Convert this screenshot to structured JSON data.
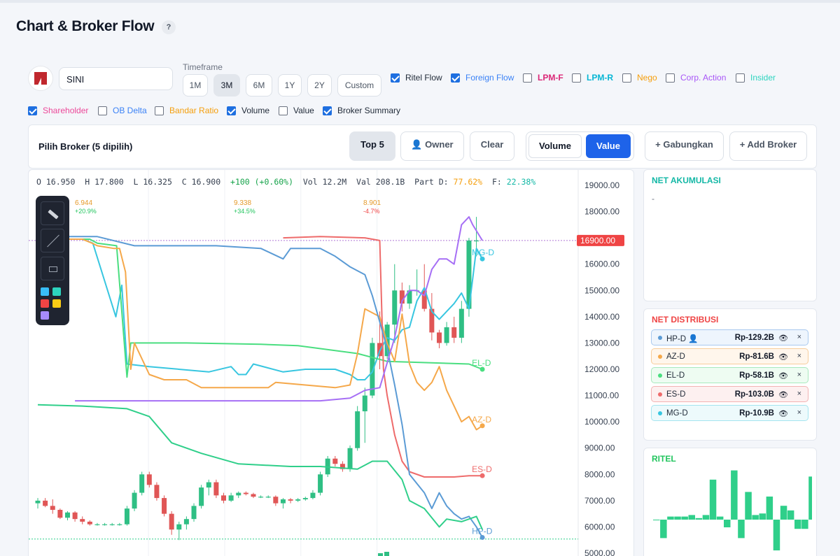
{
  "page": {
    "title": "Chart & Broker Flow",
    "help": "?"
  },
  "ticker": {
    "value": "SINI"
  },
  "timeframe": {
    "label": "Timeframe",
    "options": [
      "1M",
      "3M",
      "6M",
      "1Y",
      "2Y",
      "Custom"
    ],
    "selected": "3M"
  },
  "toggles": [
    {
      "label": "Ritel Flow",
      "checked": true,
      "color": "#1f2937"
    },
    {
      "label": "Foreign Flow",
      "checked": true,
      "color": "#3b82f6"
    },
    {
      "label": "LPM-F",
      "checked": false,
      "color": "#db2777"
    },
    {
      "label": "LPM-R",
      "checked": false,
      "color": "#06b6d4"
    },
    {
      "label": "Nego",
      "checked": false,
      "color": "#f59e0b"
    },
    {
      "label": "Corp. Action",
      "checked": false,
      "color": "#a855f7"
    },
    {
      "label": "Insider",
      "checked": false,
      "color": "#2dd4bf"
    },
    {
      "label": "Shareholder",
      "checked": true,
      "color": "#ec4899"
    },
    {
      "label": "OB Delta",
      "checked": false,
      "color": "#3b82f6"
    },
    {
      "label": "Bandar Ratio",
      "checked": false,
      "color": "#f59e0b"
    },
    {
      "label": "Volume",
      "checked": true,
      "color": "#1f2937"
    },
    {
      "label": "Value",
      "checked": false,
      "color": "#1f2937"
    },
    {
      "label": "Broker Summary",
      "checked": true,
      "color": "#1f2937"
    }
  ],
  "broker": {
    "title": "Pilih Broker (5 dipilih)",
    "top5": "Top 5",
    "owner": "👤 Owner",
    "clear": "Clear",
    "volume": "Volume",
    "value": "Value",
    "gabungkan": "+ Gabungkan",
    "add": "+ Add Broker"
  },
  "ohlc": {
    "o": "16.950",
    "h": "17.800",
    "l": "16.325",
    "c": "16.900",
    "chg": "+100 (+0.60%)",
    "vol": "12.2M",
    "val": "208.1B",
    "partd": "77.62%",
    "f": "22.38%"
  },
  "annotations": [
    {
      "value": "6.944",
      "pct": "+20.9%"
    },
    {
      "value": "9.338",
      "pct": "+34.5%"
    },
    {
      "value": "8.901",
      "pct": "-4.7%"
    }
  ],
  "chart_data": {
    "type": "line",
    "y_ticks": [
      "19000.00",
      "18000.00",
      "16000.00",
      "15000.00",
      "14000.00",
      "13000.00",
      "12000.00",
      "11000.00",
      "10000.00",
      "9000.00",
      "8000.00",
      "7000.00",
      "6000.00",
      "5000.00"
    ],
    "last_price_label": "16900.00",
    "last_price": 16900,
    "ylim": [
      5000,
      19400
    ],
    "series_labels": [
      "MG-D",
      "EL-D",
      "AZ-D",
      "ES-D",
      "HP-D"
    ],
    "candles": [
      [
        6.9,
        7.1,
        6.7,
        7.0
      ],
      [
        7.0,
        7.1,
        6.75,
        6.8
      ],
      [
        6.8,
        7.05,
        6.5,
        6.65
      ],
      [
        6.65,
        6.7,
        6.3,
        6.35
      ],
      [
        6.35,
        6.6,
        6.25,
        6.55
      ],
      [
        6.55,
        6.6,
        6.2,
        6.3
      ],
      [
        6.3,
        6.4,
        6.1,
        6.2
      ],
      [
        6.2,
        6.25,
        6.05,
        6.1
      ],
      [
        6.1,
        6.15,
        6.05,
        6.1
      ],
      [
        6.1,
        6.15,
        6.05,
        6.1
      ],
      [
        6.1,
        6.15,
        6.05,
        6.1
      ],
      [
        6.1,
        6.15,
        6.05,
        6.1
      ],
      [
        6.1,
        6.8,
        6.05,
        6.7
      ],
      [
        6.7,
        7.4,
        6.6,
        7.3
      ],
      [
        7.3,
        8.1,
        7.2,
        8.0
      ],
      [
        8.0,
        8.1,
        7.5,
        7.6
      ],
      [
        7.6,
        7.7,
        7.0,
        7.1
      ],
      [
        7.1,
        7.2,
        6.4,
        6.5
      ],
      [
        6.5,
        6.6,
        5.7,
        5.9
      ],
      [
        5.9,
        6.2,
        5.5,
        6.1
      ],
      [
        6.1,
        6.4,
        5.9,
        6.3
      ],
      [
        6.3,
        6.9,
        6.2,
        6.8
      ],
      [
        6.8,
        7.6,
        6.7,
        7.5
      ],
      [
        7.5,
        7.8,
        7.2,
        7.7
      ],
      [
        7.7,
        7.8,
        7.1,
        7.2
      ],
      [
        7.2,
        7.3,
        6.9,
        7.0
      ],
      [
        7.0,
        7.3,
        6.95,
        7.2
      ],
      [
        7.2,
        7.35,
        7.1,
        7.3
      ],
      [
        7.3,
        7.35,
        7.2,
        7.25
      ],
      [
        7.25,
        7.3,
        7.1,
        7.15
      ],
      [
        7.15,
        7.2,
        7.1,
        7.15
      ],
      [
        7.15,
        7.2,
        7.1,
        7.15
      ],
      [
        7.15,
        7.2,
        6.8,
        6.9
      ],
      [
        6.9,
        7.1,
        6.7,
        7.05
      ],
      [
        7.05,
        7.1,
        6.9,
        7.0
      ],
      [
        7.0,
        7.1,
        6.95,
        7.05
      ],
      [
        7.05,
        7.15,
        7.0,
        7.1
      ],
      [
        7.1,
        7.4,
        7.05,
        7.3
      ],
      [
        7.3,
        8.1,
        7.2,
        8.0
      ],
      [
        8.0,
        8.7,
        7.9,
        8.6
      ],
      [
        8.6,
        8.7,
        8.3,
        8.4
      ],
      [
        8.4,
        8.5,
        8.1,
        8.2
      ],
      [
        8.2,
        9.1,
        8.1,
        9.0
      ],
      [
        9.0,
        10.6,
        8.9,
        10.4
      ],
      [
        10.4,
        11.3,
        9.2,
        11.0
      ],
      [
        11.0,
        13.2,
        10.9,
        13.0
      ],
      [
        13.0,
        14.2,
        12.0,
        12.5
      ],
      [
        12.5,
        13.8,
        12.4,
        13.7
      ],
      [
        13.7,
        16.0,
        13.0,
        15.0
      ],
      [
        15.0,
        15.3,
        14.2,
        14.5
      ],
      [
        14.5,
        15.2,
        14.3,
        15.0
      ],
      [
        15.0,
        15.8,
        14.8,
        15.0
      ],
      [
        15.0,
        16.0,
        14.2,
        14.3
      ],
      [
        14.3,
        14.9,
        13.1,
        13.4
      ],
      [
        13.4,
        13.5,
        12.8,
        13.0
      ],
      [
        13.0,
        13.8,
        12.9,
        13.6
      ],
      [
        13.6,
        14.0,
        13.0,
        13.2
      ],
      [
        13.2,
        14.6,
        13.0,
        14.3
      ],
      [
        14.3,
        17.0,
        14.0,
        16.9
      ],
      [
        16.9,
        17.8,
        16.3,
        16.9
      ]
    ],
    "lines": [
      {
        "name": "MG-D",
        "color": "#38c6e0",
        "points": [
          [
            0,
            16.95
          ],
          [
            6,
            16.95
          ],
          [
            7.4,
            16.8
          ],
          [
            10.5,
            14.0
          ],
          [
            11.3,
            15.2
          ],
          [
            12,
            12.2
          ],
          [
            15,
            12.1
          ],
          [
            23,
            11.9
          ],
          [
            26,
            12.1
          ],
          [
            27,
            11.8
          ],
          [
            28,
            11.8
          ],
          [
            29,
            12.2
          ],
          [
            33,
            11.9
          ],
          [
            36,
            12.0
          ],
          [
            40,
            12.0
          ],
          [
            42,
            11.8
          ],
          [
            43,
            11.6
          ],
          [
            44,
            11.6
          ],
          [
            45,
            11.9
          ],
          [
            46,
            12.7
          ],
          [
            47,
            13.2
          ],
          [
            48,
            13.1
          ],
          [
            49,
            13.5
          ],
          [
            50,
            13.6
          ],
          [
            51,
            14.6
          ],
          [
            52,
            15.1
          ],
          [
            53,
            14.2
          ],
          [
            54,
            13.9
          ],
          [
            55,
            14.2
          ],
          [
            56,
            14.5
          ],
          [
            57,
            14.9
          ],
          [
            58,
            14.3
          ],
          [
            59,
            16.6
          ],
          [
            59.8,
            16.2
          ]
        ]
      },
      {
        "name": "EL-D",
        "color": "#4ade80",
        "points": [
          [
            0,
            16.95
          ],
          [
            7,
            16.95
          ],
          [
            8,
            16.8
          ],
          [
            10.6,
            16.7
          ],
          [
            12.0,
            11.7
          ],
          [
            12.5,
            13.0
          ],
          [
            14,
            13.0
          ],
          [
            20,
            13.0
          ],
          [
            30,
            12.95
          ],
          [
            35,
            12.9
          ],
          [
            43,
            12.6
          ],
          [
            47,
            12.3
          ],
          [
            58,
            12.2
          ],
          [
            59.8,
            12.0
          ]
        ]
      },
      {
        "name": "AZ-D",
        "color": "#f5a84a",
        "points": [
          [
            0,
            16.95
          ],
          [
            6,
            16.95
          ],
          [
            7.3,
            16.8
          ],
          [
            8,
            16.7
          ],
          [
            10.2,
            16.6
          ],
          [
            10.6,
            16.6
          ],
          [
            11,
            16.6
          ],
          [
            11.8,
            15.7
          ],
          [
            12.5,
            12.0
          ],
          [
            13,
            13.0
          ],
          [
            15,
            11.8
          ],
          [
            17,
            11.6
          ],
          [
            20,
            11.6
          ],
          [
            22,
            11.3
          ],
          [
            28,
            11.3
          ],
          [
            29,
            11.3
          ],
          [
            30,
            11.3
          ],
          [
            31,
            11.3
          ],
          [
            32,
            11.5
          ],
          [
            40,
            11.3
          ],
          [
            42,
            11.4
          ],
          [
            43,
            12.6
          ],
          [
            44,
            14.3
          ],
          [
            46,
            14.0
          ],
          [
            47,
            13.0
          ],
          [
            48,
            12.3
          ],
          [
            49,
            14.1
          ],
          [
            50,
            12.2
          ],
          [
            51,
            11.5
          ],
          [
            52,
            11.2
          ],
          [
            53,
            11.5
          ],
          [
            54,
            12.1
          ],
          [
            55,
            11.2
          ],
          [
            56,
            10.6
          ],
          [
            57,
            10.0
          ],
          [
            58,
            10.2
          ],
          [
            59,
            9.7
          ],
          [
            59.8,
            9.85
          ]
        ]
      },
      {
        "name": "ES-D",
        "color": "#ee6b6b",
        "points": [
          [
            33,
            17.0
          ],
          [
            38,
            17.05
          ],
          [
            44,
            17.0
          ],
          [
            46,
            16.9
          ],
          [
            46.5,
            12.0
          ],
          [
            47,
            11.0
          ],
          [
            48,
            9.5
          ],
          [
            49,
            8.5
          ],
          [
            50,
            8.1
          ],
          [
            52,
            7.9
          ],
          [
            56,
            7.9
          ],
          [
            58,
            7.95
          ],
          [
            59.8,
            7.95
          ]
        ]
      },
      {
        "name": "HP-D",
        "color": "#5b9bd5",
        "points": [
          [
            0,
            17.05
          ],
          [
            8,
            17.05
          ],
          [
            13,
            16.7
          ],
          [
            24,
            16.7
          ],
          [
            30,
            16.6
          ],
          [
            33,
            16.2
          ],
          [
            34,
            16.6
          ],
          [
            38,
            16.6
          ],
          [
            40,
            16.3
          ],
          [
            42,
            15.9
          ],
          [
            44,
            15.6
          ],
          [
            45,
            14.8
          ],
          [
            47,
            12.8
          ],
          [
            48,
            11.4
          ],
          [
            49,
            9.9
          ],
          [
            50,
            8.0
          ],
          [
            52,
            7.3
          ],
          [
            53,
            6.7
          ],
          [
            54,
            7.3
          ],
          [
            55,
            6.8
          ],
          [
            56,
            6.5
          ],
          [
            57,
            6.3
          ],
          [
            58,
            6.4
          ],
          [
            59,
            6.0
          ],
          [
            59.8,
            5.6
          ]
        ]
      },
      {
        "name": "",
        "color": "#2fcf8a",
        "points": [
          [
            0,
            10.65
          ],
          [
            6,
            10.6
          ],
          [
            12,
            10.5
          ],
          [
            15,
            10.2
          ],
          [
            18,
            9.2
          ],
          [
            22,
            8.8
          ],
          [
            27,
            8.4
          ],
          [
            34,
            8.3
          ],
          [
            38,
            8.3
          ],
          [
            43,
            8.2
          ],
          [
            45,
            8.5
          ],
          [
            47,
            8.5
          ],
          [
            49,
            7.8
          ],
          [
            50,
            7.0
          ],
          [
            52,
            6.7
          ],
          [
            54,
            6.0
          ],
          [
            55,
            6.3
          ],
          [
            57,
            6.2
          ],
          [
            59,
            6.4
          ],
          [
            59.8,
            5.9
          ]
        ]
      },
      {
        "name": "",
        "color": "#a66ff5",
        "points": [
          [
            5,
            10.8
          ],
          [
            15,
            10.8
          ],
          [
            30,
            10.8
          ],
          [
            38,
            10.8
          ],
          [
            42,
            10.9
          ],
          [
            44,
            11.2
          ],
          [
            46,
            11.3
          ],
          [
            48,
            13.2
          ],
          [
            49,
            14.6
          ],
          [
            50,
            15.0
          ],
          [
            51,
            15.0
          ],
          [
            52,
            14.8
          ],
          [
            53,
            15.8
          ],
          [
            54,
            16.2
          ],
          [
            55,
            16.2
          ],
          [
            56,
            16.0
          ],
          [
            57,
            17.5
          ],
          [
            58,
            17.8
          ],
          [
            58.5,
            17.5
          ],
          [
            59.8,
            16.9
          ]
        ]
      }
    ]
  },
  "net_akumulasi": {
    "title": "NET AKUMULASI",
    "value": "-"
  },
  "net_distribusi": {
    "title": "NET DISTRIBUSI",
    "items": [
      {
        "name": "HP-D 👤",
        "value": "Rp-129.2B",
        "color": "#5b9bd5",
        "bg": "#eef5fd",
        "border": "#a9c9ef"
      },
      {
        "name": "AZ-D",
        "value": "Rp-81.6B",
        "color": "#f5a84a",
        "bg": "#fff6ec",
        "border": "#f7cd9b"
      },
      {
        "name": "EL-D",
        "value": "Rp-58.1B",
        "color": "#4ade80",
        "bg": "#eefcf2",
        "border": "#a8e9bd"
      },
      {
        "name": "ES-D",
        "value": "Rp-103.0B",
        "color": "#ee6b6b",
        "bg": "#fdf0f0",
        "border": "#f2b3b3"
      },
      {
        "name": "MG-D",
        "value": "Rp-10.9B",
        "color": "#38c6e0",
        "bg": "#edfafc",
        "border": "#a4e4ef"
      }
    ]
  },
  "ritel": {
    "title": "RITEL",
    "bars": [
      0,
      -0.6,
      0.1,
      0.1,
      0.1,
      0.15,
      0.05,
      0.15,
      1.3,
      0.1,
      -0.25,
      1.6,
      -0.6,
      0.9,
      0.15,
      0.2,
      0.75,
      -1.0,
      0.45,
      0.3,
      -0.3,
      -0.3,
      1.4
    ]
  }
}
